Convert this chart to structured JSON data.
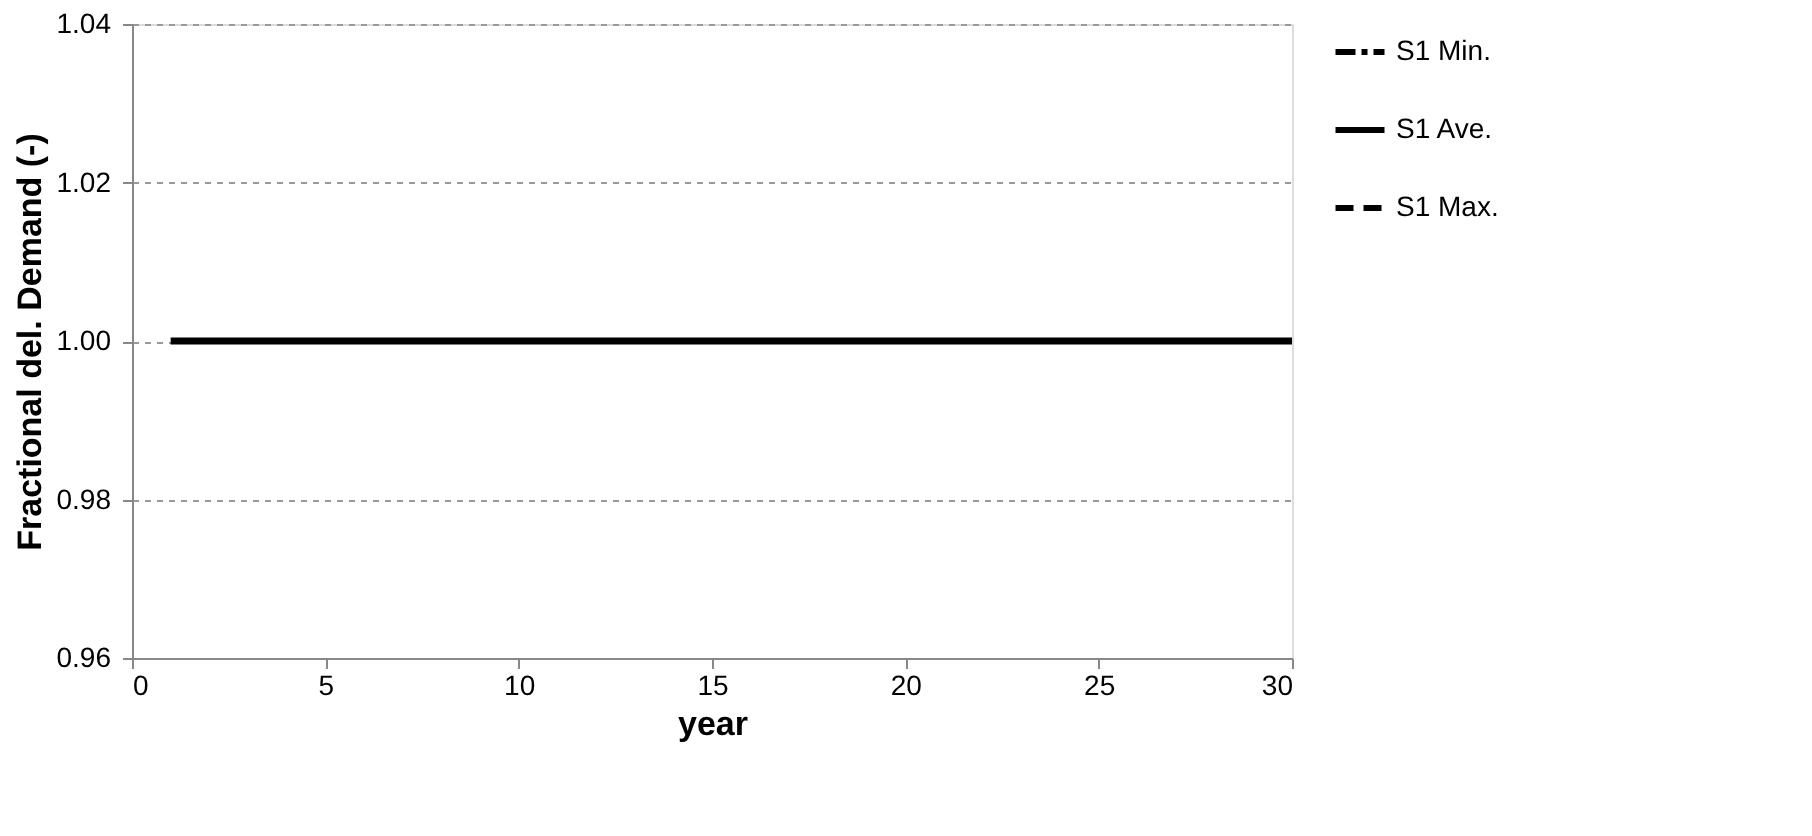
{
  "chart_data": {
    "type": "line",
    "xlabel": "year",
    "ylabel": "Fractional del. Demand (-)",
    "x": [
      1,
      30
    ],
    "series": [
      {
        "name": "S1 Min.",
        "color": "#000000",
        "line_style": "dotted",
        "values": [
          null,
          null
        ]
      },
      {
        "name": "S1 Ave.",
        "color": "#000000",
        "line_style": "solid",
        "values": [
          1.0,
          1.0
        ]
      },
      {
        "name": "S1 Max.",
        "color": "#000000",
        "line_style": "dashed",
        "values": [
          null,
          null
        ]
      }
    ],
    "xlim": [
      0,
      30
    ],
    "xticks": [
      0,
      5,
      10,
      15,
      20,
      25,
      30
    ],
    "ylim": [
      0.96,
      1.04
    ],
    "yticks": [
      {
        "value": 0.96,
        "label": "0.96"
      },
      {
        "value": 0.98,
        "label": "0.98"
      },
      {
        "value": 1.0,
        "label": "1.00"
      },
      {
        "value": 1.02,
        "label": "1.02"
      },
      {
        "value": 1.04,
        "label": "1.04"
      }
    ],
    "grid": "y",
    "legend": "right",
    "marker": "none"
  }
}
